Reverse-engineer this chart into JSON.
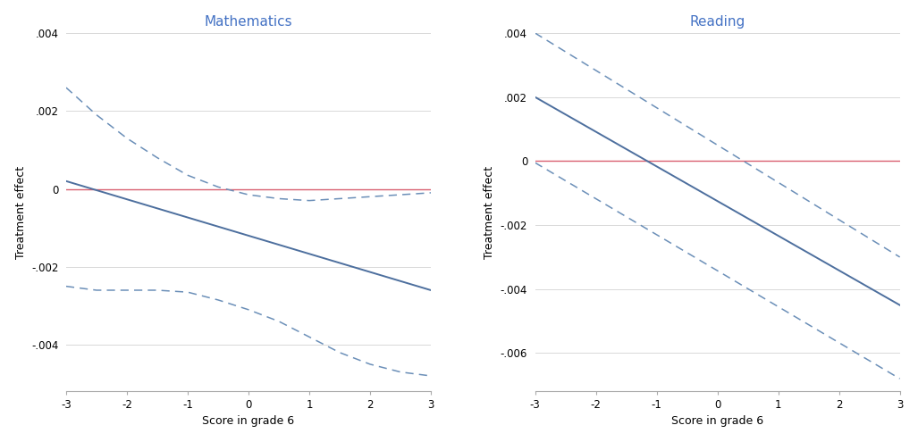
{
  "math": {
    "title": "Mathematics",
    "ylabel": "Treatment effect",
    "xlabel": "Score in grade 6",
    "xlim": [
      -3,
      3
    ],
    "ylim": [
      -0.0052,
      0.004
    ],
    "yticks": [
      -0.004,
      -0.002,
      0,
      0.002,
      0.004
    ],
    "xticks": [
      -3,
      -2,
      -1,
      0,
      1,
      2,
      3
    ],
    "main_line": {
      "x": [
        -3,
        3
      ],
      "y": [
        0.0002,
        -0.0026
      ]
    },
    "ci_upper": {
      "x": [
        -3,
        -2.5,
        -2,
        -1.5,
        -1,
        -0.5,
        0,
        0.5,
        1,
        1.5,
        2,
        2.5,
        3
      ],
      "y": [
        0.0026,
        0.0019,
        0.0013,
        0.0008,
        0.00035,
        5e-05,
        -0.00015,
        -0.00025,
        -0.0003,
        -0.00025,
        -0.0002,
        -0.00015,
        -0.0001
      ]
    },
    "ci_lower": {
      "x": [
        -3,
        -2.5,
        -2,
        -1.5,
        -1,
        -0.5,
        0,
        0.5,
        1,
        1.5,
        2,
        2.5,
        3
      ],
      "y": [
        -0.0025,
        -0.0026,
        -0.0026,
        -0.0026,
        -0.00265,
        -0.00285,
        -0.0031,
        -0.0034,
        -0.0038,
        -0.0042,
        -0.0045,
        -0.0047,
        -0.0048
      ]
    }
  },
  "reading": {
    "title": "Reading",
    "ylabel": "Treatment effect",
    "xlabel": "Score in grade 6",
    "xlim": [
      -3,
      3
    ],
    "ylim": [
      -0.0072,
      0.004
    ],
    "yticks": [
      -0.006,
      -0.004,
      -0.002,
      0,
      0.002,
      0.004
    ],
    "xticks": [
      -3,
      -2,
      -1,
      0,
      1,
      2,
      3
    ],
    "main_line": {
      "x": [
        -3,
        3
      ],
      "y": [
        0.002,
        -0.0045
      ]
    },
    "ci_upper": {
      "x": [
        -3,
        3
      ],
      "y": [
        0.004,
        -0.003
      ]
    },
    "ci_lower": {
      "x": [
        -3,
        3
      ],
      "y": [
        -5e-05,
        -0.0068
      ]
    }
  },
  "line_color": "#4d6f9e",
  "ci_color": "#6b8fb8",
  "zero_line_color": "#d96070",
  "grid_color": "#d8d8d8",
  "background_color": "#ffffff",
  "fig_background_color": "#ffffff",
  "title_color": "#4472c4",
  "title_fontsize": 11,
  "label_fontsize": 9,
  "tick_fontsize": 8.5
}
